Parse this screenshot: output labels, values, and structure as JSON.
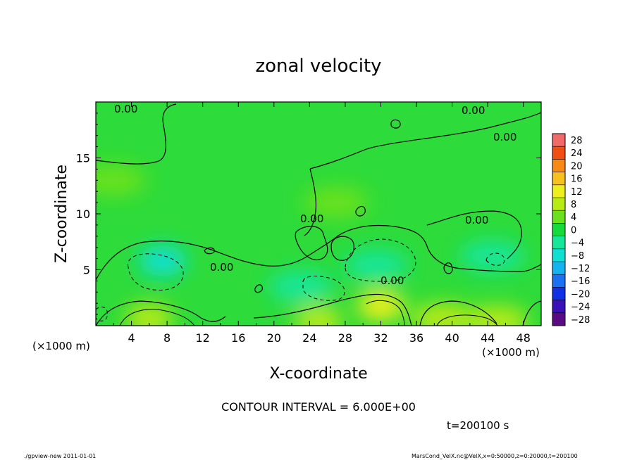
{
  "chart_data": {
    "type": "heatmap",
    "title": "zonal velocity",
    "xlabel": "X-coordinate",
    "ylabel": "Z-coordinate",
    "x_unit_label": "(×1000 m)",
    "y_unit_label": "(×1000 m)",
    "xlim": [
      0,
      50
    ],
    "ylim": [
      0,
      20
    ],
    "x_ticks": [
      "4",
      "8",
      "12",
      "16",
      "20",
      "24",
      "28",
      "32",
      "36",
      "40",
      "44",
      "48"
    ],
    "x_tick_values": [
      4,
      8,
      12,
      16,
      20,
      24,
      28,
      32,
      36,
      40,
      44,
      48
    ],
    "y_ticks": [
      "5",
      "10",
      "15"
    ],
    "y_tick_values": [
      5,
      10,
      15
    ],
    "colorbar": {
      "labels": [
        "28",
        "24",
        "20",
        "16",
        "12",
        "8",
        "4",
        "0",
        "−4",
        "−8",
        "−12",
        "−16",
        "−20",
        "−24",
        "−28"
      ],
      "levels": [
        -30,
        -26,
        -22,
        -18,
        -14,
        -10,
        -6,
        -2,
        2,
        6,
        10,
        14,
        18,
        22,
        26,
        30
      ],
      "colors": [
        "#5a0a82",
        "#3a10b8",
        "#1030e6",
        "#1a72f2",
        "#15b4f0",
        "#10e0d2",
        "#16e69a",
        "#14da3c",
        "#6ae11c",
        "#b8ea14",
        "#eef01e",
        "#f8c21e",
        "#f88a14",
        "#f24e14",
        "#f06a6a"
      ]
    },
    "contour_labels": [
      "0.00",
      "0.00",
      "0.00",
      "0.00",
      "0.00",
      "0.00",
      "0.00"
    ],
    "contour_interval_text": "CONTOUR INTERVAL = 6.000E+00",
    "time_text": "t=200100 s",
    "footer_left": "./gpview-new  2011-01-01",
    "footer_right": "MarsCond_VelX.nc@VelX,x=0:50000,z=0:20000,t=200100",
    "features": [
      {
        "x": 7.5,
        "z": 5.8,
        "value": -10
      },
      {
        "x": 31.5,
        "z": 5.4,
        "value": -6
      },
      {
        "x": 23,
        "z": 3.5,
        "value": -5
      },
      {
        "x": 44.5,
        "z": 6.2,
        "value": -6
      },
      {
        "x": 6,
        "z": 0.6,
        "value": 9
      },
      {
        "x": 25,
        "z": 0.4,
        "value": 9
      },
      {
        "x": 32,
        "z": 1.8,
        "value": 11
      },
      {
        "x": 45,
        "z": 0.4,
        "value": 8
      },
      {
        "x": 39,
        "z": 0.6,
        "value": 6
      },
      {
        "x": 2,
        "z": 13,
        "value": 3
      },
      {
        "x": 27,
        "z": 11,
        "value": 3
      }
    ]
  }
}
